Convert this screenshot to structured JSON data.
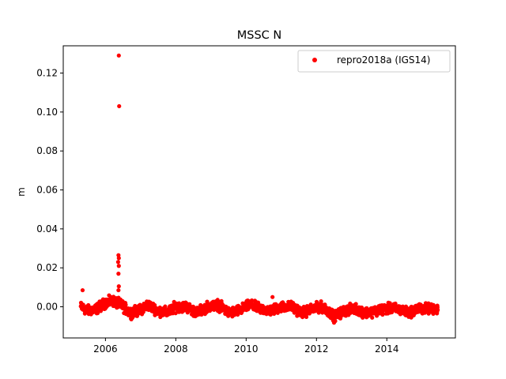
{
  "chart_data": {
    "type": "scatter",
    "title": "MSSC N",
    "xlabel": "",
    "ylabel": "m",
    "xlim": [
      2004.8,
      2015.95
    ],
    "ylim": [
      -0.016,
      0.134
    ],
    "xticks": [
      2006,
      2008,
      2010,
      2012,
      2014
    ],
    "xtick_labels": [
      "2006",
      "2008",
      "2010",
      "2012",
      "2014"
    ],
    "yticks": [
      0.0,
      0.02,
      0.04,
      0.06,
      0.08,
      0.1,
      0.12
    ],
    "ytick_labels": [
      "0.00",
      "0.02",
      "0.04",
      "0.06",
      "0.08",
      "0.10",
      "0.12"
    ],
    "grid": false,
    "legend_position": "top-right",
    "series": [
      {
        "name": "repro2018a (IGS14)",
        "color": "#ff0000",
        "marker": "circle",
        "outliers": [
          {
            "x": 2005.35,
            "y": 0.0085
          },
          {
            "x": 2006.38,
            "y": 0.129
          },
          {
            "x": 2006.39,
            "y": 0.103
          },
          {
            "x": 2006.37,
            "y": 0.0265
          },
          {
            "x": 2006.38,
            "y": 0.025
          },
          {
            "x": 2006.36,
            "y": 0.023
          },
          {
            "x": 2006.38,
            "y": 0.021
          },
          {
            "x": 2006.37,
            "y": 0.017
          },
          {
            "x": 2006.38,
            "y": 0.0105
          },
          {
            "x": 2006.37,
            "y": 0.0085
          },
          {
            "x": 2010.75,
            "y": 0.005
          }
        ],
        "baseline": [
          [
            2005.3,
            0.0
          ],
          [
            2005.5,
            -0.002
          ],
          [
            2005.75,
            -0.001
          ],
          [
            2006.0,
            0.002
          ],
          [
            2006.2,
            0.003
          ],
          [
            2006.45,
            0.001
          ],
          [
            2006.7,
            -0.003
          ],
          [
            2006.95,
            -0.002
          ],
          [
            2007.2,
            0.001
          ],
          [
            2007.5,
            -0.002
          ],
          [
            2007.75,
            -0.003
          ],
          [
            2008.0,
            0.0
          ],
          [
            2008.3,
            0.0
          ],
          [
            2008.6,
            -0.003
          ],
          [
            2008.9,
            0.0
          ],
          [
            2009.2,
            0.001
          ],
          [
            2009.5,
            -0.003
          ],
          [
            2009.8,
            -0.002
          ],
          [
            2010.1,
            0.001
          ],
          [
            2010.4,
            -0.001
          ],
          [
            2010.7,
            -0.002
          ],
          [
            2011.0,
            0.0
          ],
          [
            2011.3,
            0.0
          ],
          [
            2011.6,
            -0.003
          ],
          [
            2011.9,
            -0.001
          ],
          [
            2012.2,
            0.0
          ],
          [
            2012.5,
            -0.005
          ],
          [
            2012.8,
            -0.002
          ],
          [
            2013.1,
            -0.001
          ],
          [
            2013.4,
            -0.003
          ],
          [
            2013.7,
            -0.002
          ],
          [
            2014.0,
            -0.001
          ],
          [
            2014.3,
            -0.001
          ],
          [
            2014.6,
            -0.003
          ],
          [
            2014.9,
            -0.001
          ],
          [
            2015.2,
            -0.001
          ],
          [
            2015.45,
            -0.001
          ]
        ],
        "spread": 0.0025,
        "x_start": 2005.3,
        "x_end": 2015.45,
        "x_step": 0.0055
      }
    ]
  }
}
